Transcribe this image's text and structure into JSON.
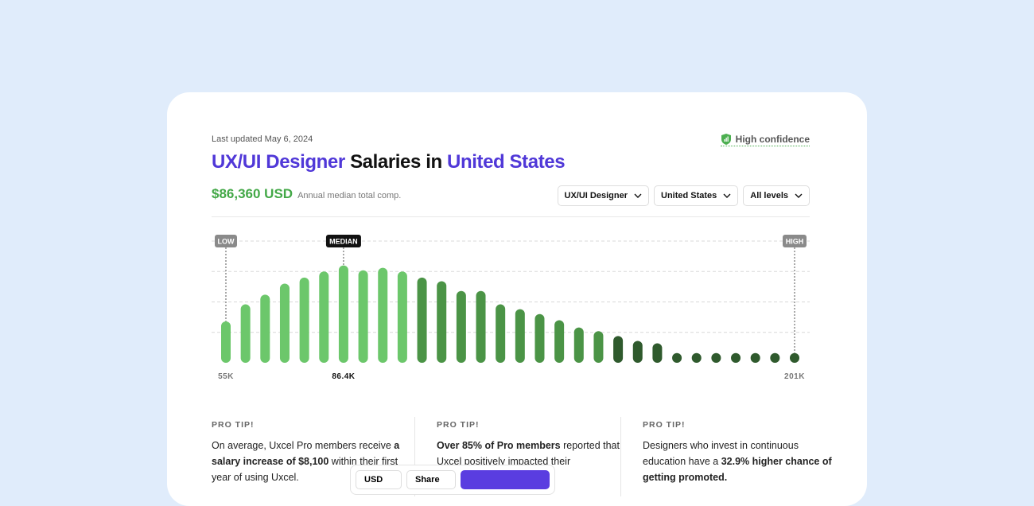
{
  "header": {
    "updated": "Last updated May 6, 2024",
    "confidence": "High confidence",
    "title_role": "UX/UI Designer",
    "title_mid": "Salaries in",
    "title_place": "United States",
    "salary": "$86,360 USD",
    "salary_note": "Annual median total comp."
  },
  "filters": [
    "UX/UI Designer",
    "United States",
    "All levels"
  ],
  "chart_data": {
    "type": "bar",
    "values": [
      34,
      48,
      56,
      65,
      70,
      75,
      80,
      76,
      78,
      75,
      70,
      67,
      59,
      59,
      48,
      44,
      40,
      35,
      29,
      26,
      22,
      18,
      16,
      8,
      8,
      8,
      8,
      8,
      8,
      8
    ],
    "colors": [
      "#6cc76b",
      "#6cc76b",
      "#6cc76b",
      "#6cc76b",
      "#6cc76b",
      "#6cc76b",
      "#6cc76b",
      "#6cc76b",
      "#6cc76b",
      "#6cc76b",
      "#4b9446",
      "#4b9446",
      "#4b9446",
      "#4b9446",
      "#4b9446",
      "#4b9446",
      "#4b9446",
      "#4b9446",
      "#4b9446",
      "#4b9446",
      "#2f5a2d",
      "#2f5a2d",
      "#2f5a2d",
      "#2f5a2d",
      "#2f5a2d",
      "#2f5a2d",
      "#2f5a2d",
      "#2f5a2d",
      "#2f5a2d",
      "#2f5a2d"
    ],
    "ylim": [
      0,
      100
    ],
    "yticks": [
      25,
      50,
      75,
      100
    ],
    "grid": true,
    "markers": [
      "LOW",
      "MEDIAN",
      "HIGH"
    ],
    "x_labels": [
      "55K",
      "86.4K",
      "201K"
    ]
  },
  "tips": [
    {
      "label": "PRO TIP!",
      "parts": [
        {
          "text": "On average, Uxcel Pro members receive ",
          "bold": false
        },
        {
          "text": "a salary increase of $8,100",
          "bold": true
        },
        {
          "text": " within their first year of using Uxcel.",
          "bold": false
        }
      ]
    },
    {
      "label": "PRO TIP!",
      "parts": [
        {
          "text": "Over 85% of Pro members",
          "bold": true
        },
        {
          "text": " reported that Uxcel positively impacted their",
          "bold": false
        }
      ]
    },
    {
      "label": "PRO TIP!",
      "parts": [
        {
          "text": "Designers who invest in continuous education have a ",
          "bold": false
        },
        {
          "text": "32.9% higher chance of getting promoted.",
          "bold": true
        }
      ]
    }
  ],
  "toolbar": [
    "USD",
    "Share"
  ]
}
